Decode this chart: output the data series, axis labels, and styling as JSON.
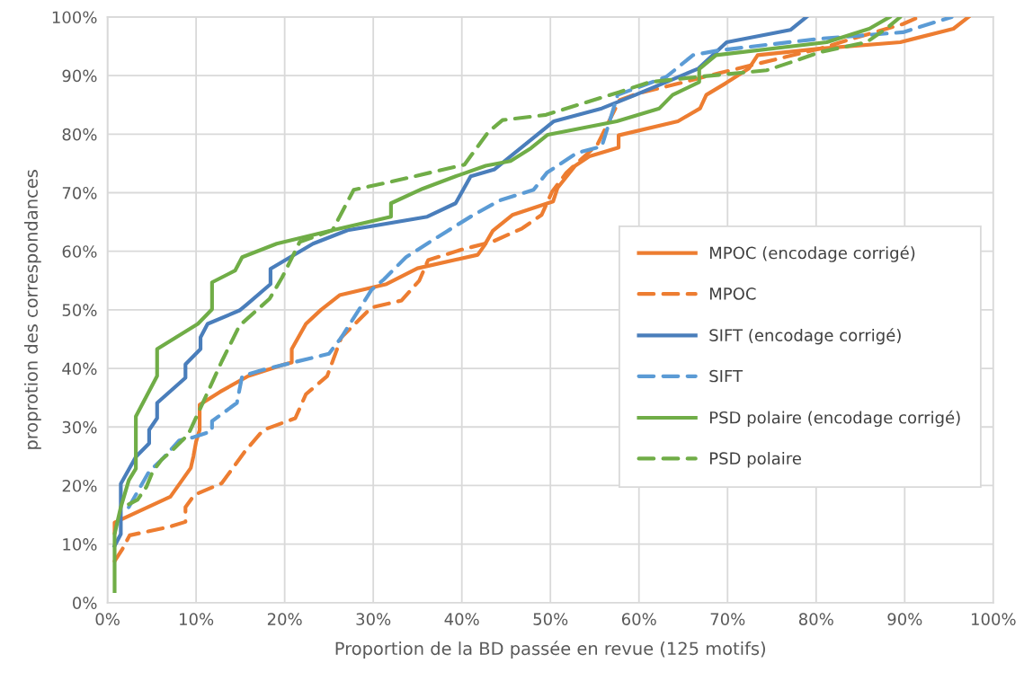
{
  "chart_data": {
    "type": "line",
    "xlabel": "Proportion de la BD passée en revue (125 motifs)",
    "ylabel": "proprotion des correspondances",
    "xlim": [
      0,
      100
    ],
    "ylim": [
      0,
      100
    ],
    "xticks": [
      {
        "value": 0,
        "label": "0%"
      },
      {
        "value": 10,
        "label": "10%"
      },
      {
        "value": 20,
        "label": "20%"
      },
      {
        "value": 30,
        "label": "30%"
      },
      {
        "value": 40,
        "label": "40%"
      },
      {
        "value": 50,
        "label": "50%"
      },
      {
        "value": 60,
        "label": "60%"
      },
      {
        "value": 70,
        "label": "70%"
      },
      {
        "value": 80,
        "label": "80%"
      },
      {
        "value": 90,
        "label": "90%"
      },
      {
        "value": 100,
        "label": "100%"
      }
    ],
    "yticks": [
      {
        "value": 0,
        "label": "0%"
      },
      {
        "value": 10,
        "label": "10%"
      },
      {
        "value": 20,
        "label": "20%"
      },
      {
        "value": 30,
        "label": "30%"
      },
      {
        "value": 40,
        "label": "40%"
      },
      {
        "value": 50,
        "label": "50%"
      },
      {
        "value": 60,
        "label": "60%"
      },
      {
        "value": 70,
        "label": "70%"
      },
      {
        "value": 80,
        "label": "80%"
      },
      {
        "value": 90,
        "label": "90%"
      },
      {
        "value": 100,
        "label": "100%"
      }
    ],
    "grid": true,
    "legend": "right",
    "series": [
      {
        "name": "MPOC (encodage corrigé)",
        "color": "#ed7d31",
        "line_style": "solid",
        "x": [
          0.8,
          0.8,
          7.1,
          9.4,
          9.7,
          10,
          10.4,
          10.4,
          12.7,
          15.9,
          20,
          20.8,
          20.8,
          22.4,
          24.1,
          26.2,
          31.5,
          35,
          41.8,
          42.5,
          43.5,
          45.7,
          50.3,
          50.8,
          52.8,
          54.4,
          57.7,
          57.7,
          64.4,
          66.9,
          67.6,
          69.8,
          72.4,
          73.4,
          80.4,
          89.5,
          95.5,
          97.2
        ],
        "values": [
          12,
          13.7,
          18.1,
          23,
          25,
          27.5,
          29.5,
          33.8,
          36,
          38.7,
          40.7,
          41,
          43.3,
          47.6,
          50,
          52.5,
          54.4,
          57.1,
          59.4,
          60.9,
          63.5,
          66.2,
          68.5,
          70.8,
          74.6,
          76.2,
          77.7,
          79.8,
          82.2,
          84.4,
          86.7,
          88.7,
          91.2,
          93.5,
          94.6,
          95.7,
          98,
          100
        ]
      },
      {
        "name": "MPOC",
        "color": "#ed7d31",
        "line_style": "dashed",
        "x": [
          0.8,
          1.7,
          2.5,
          7.1,
          8.8,
          8.8,
          9.8,
          12.9,
          15.6,
          17.6,
          21.2,
          22.4,
          24.8,
          26.4,
          29.8,
          33.2,
          35.2,
          36.2,
          40,
          43.4,
          46.8,
          49,
          50.2,
          51.8,
          55.3,
          57.8,
          60,
          63.8,
          69,
          76.6,
          80.4,
          84.1,
          89.8,
          91.6
        ],
        "values": [
          7.1,
          9.2,
          11.5,
          13,
          13.8,
          16.3,
          18.4,
          20.4,
          26,
          29.5,
          31.5,
          35.6,
          38.7,
          45.3,
          50.4,
          51.6,
          55,
          58.5,
          60.3,
          61.6,
          63.9,
          66.2,
          70.2,
          73.4,
          78.2,
          85.8,
          87,
          88.4,
          90.4,
          93.2,
          94.6,
          96.3,
          98.8,
          100
        ]
      },
      {
        "name": "SIFT (encodage corrigé)",
        "color": "#4a7ebb",
        "line_style": "solid",
        "x": [
          0.8,
          1.5,
          1.5,
          3.2,
          4.7,
          4.7,
          5.6,
          5.6,
          8.8,
          8.8,
          10.5,
          10.5,
          11.3,
          14.9,
          15.7,
          18.4,
          18.4,
          23.2,
          27.1,
          36.1,
          39.3,
          41,
          43.7,
          50.4,
          55.8,
          59.6,
          66.7,
          69.9,
          77.1,
          78.9
        ],
        "values": [
          9.7,
          11.7,
          20.3,
          24.9,
          27.2,
          29.5,
          31.5,
          34.1,
          38.4,
          40.7,
          43.3,
          45.3,
          47.6,
          49.9,
          50.9,
          54.4,
          57,
          61.3,
          63.6,
          65.9,
          68.2,
          72.8,
          74,
          82.2,
          84.4,
          86.7,
          91.2,
          95.7,
          97.8,
          100
        ]
      },
      {
        "name": "SIFT",
        "color": "#5b9bd5",
        "line_style": "dashed",
        "x": [
          2.4,
          4.7,
          6.1,
          8.1,
          9.6,
          11.8,
          11.8,
          14.6,
          15.2,
          17.9,
          25,
          26.4,
          29.8,
          31.2,
          33.7,
          36.6,
          41.3,
          44.3,
          48.1,
          49.6,
          53,
          55.8,
          57.6,
          63.1,
          66.1,
          69,
          80.4,
          89.8,
          95.3
        ],
        "values": [
          16.3,
          22.4,
          24.4,
          27.7,
          28.2,
          29.3,
          31,
          34.1,
          38.7,
          39.9,
          42.5,
          45.3,
          53.4,
          55.2,
          59,
          61.8,
          66.2,
          68.7,
          70.5,
          73.4,
          76.8,
          77.9,
          86.7,
          89.8,
          93.5,
          94.3,
          96.3,
          97.4,
          100
        ]
      },
      {
        "name": "PSD polaire (encodage corrigé)",
        "color": "#70ad47",
        "line_style": "solid",
        "x": [
          0.8,
          0.8,
          1.5,
          2.4,
          3.2,
          3.2,
          5.6,
          5.6,
          10.2,
          11.8,
          11.8,
          14.4,
          15.2,
          19.1,
          25.4,
          32,
          32,
          35.6,
          39.3,
          42.7,
          45.5,
          47.8,
          49.7,
          57.5,
          62.3,
          63.8,
          66.8,
          66.8,
          68.7,
          81.2,
          86,
          88.3
        ],
        "values": [
          2,
          11.7,
          16.3,
          20.9,
          22.9,
          31.8,
          38.7,
          43.3,
          47.6,
          50.1,
          54.7,
          56.7,
          59,
          61.3,
          63.6,
          65.9,
          68.2,
          70.7,
          72.8,
          74.6,
          75.4,
          77.6,
          79.9,
          82.2,
          84.4,
          86.7,
          88.9,
          91.1,
          93.5,
          95.7,
          98,
          100
        ]
      },
      {
        "name": "PSD polaire",
        "color": "#70ad47",
        "line_style": "dashed",
        "x": [
          2.4,
          3.4,
          4.4,
          5.1,
          6.1,
          7.3,
          9.1,
          10.3,
          12.9,
          14.9,
          18.3,
          19.7,
          21.7,
          25.4,
          27.8,
          31.8,
          40.3,
          43,
          44.6,
          49.5,
          57.8,
          61.2,
          66.8,
          74.4,
          77.8,
          80.4,
          85.7,
          87.9,
          89.5
        ],
        "values": [
          16.8,
          17.6,
          19.8,
          22.4,
          24.4,
          26,
          28.7,
          32.6,
          41.2,
          47.3,
          51.9,
          55.5,
          61.6,
          63.6,
          70.5,
          71.8,
          74.8,
          80.4,
          82.4,
          83.3,
          87.2,
          88.9,
          89.8,
          90.9,
          92.6,
          94,
          95.7,
          98,
          100
        ]
      }
    ]
  }
}
